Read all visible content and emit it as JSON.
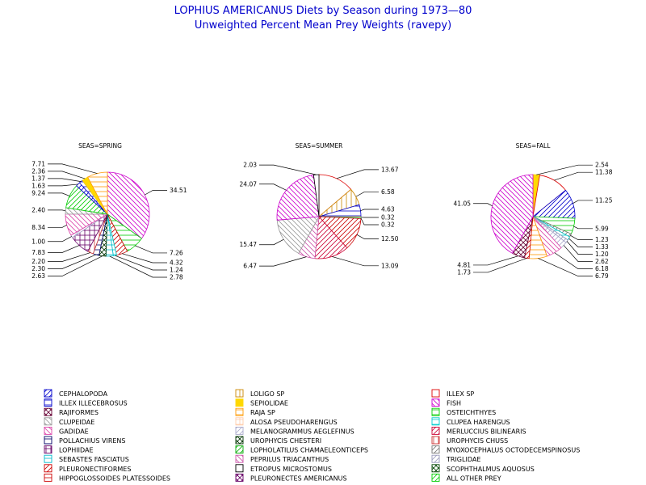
{
  "chart_data": {
    "type": "pie",
    "title": "LOPHIUS AMERICANUS Diets by Season during 1973—80",
    "subtitle": "Unweighted Percent Mean Prey Weights (ravepy)",
    "legend_placement": "bottom",
    "legend": [
      {
        "name": "CEPHALOPODA",
        "color": "#0000cc"
      },
      {
        "name": "LOLIGO SP",
        "color": "#cc8800"
      },
      {
        "name": "ILLEX SP",
        "color": "#dd0000"
      },
      {
        "name": "ILLEX ILLECEBROSUS",
        "color": "#0000cc"
      },
      {
        "name": "SEPIOLIDAE",
        "color": "#ffd800"
      },
      {
        "name": "FISH",
        "color": "#cc00cc"
      },
      {
        "name": "RAJIFORMES",
        "color": "#660033"
      },
      {
        "name": "RAJA SP",
        "color": "#ff9900"
      },
      {
        "name": "OSTEICHTHYES",
        "color": "#00cc00"
      },
      {
        "name": "CLUPEIDAE",
        "color": "#999999"
      },
      {
        "name": "ALOSA PSEUDOHARENGUS",
        "color": "#ffccaa"
      },
      {
        "name": "CLUPEA HARENGUS",
        "color": "#00cccc"
      },
      {
        "name": "GADIDAE",
        "color": "#dd44aa"
      },
      {
        "name": "MELANOGRAMMUS AEGLEFINUS",
        "color": "#aaaacc"
      },
      {
        "name": "MERLUCCIUS BILINEARIS",
        "color": "#cc0033"
      },
      {
        "name": "POLLACHIUS VIRENS",
        "color": "#000066"
      },
      {
        "name": "UROPHYCIS CHESTERI",
        "color": "#003300"
      },
      {
        "name": "UROPHYCIS CHUSS",
        "color": "#cc3333"
      },
      {
        "name": "LOPHIIDAE",
        "color": "#660066"
      },
      {
        "name": "LOPHOLATILUS CHAMAELEONTICEPS",
        "color": "#00aa00"
      },
      {
        "name": "MYOXOCEPHALUS OCTODECEMSPINOSUS",
        "color": "#777777"
      },
      {
        "name": "SEBASTES FASCIATUS",
        "color": "#00bbcc"
      },
      {
        "name": "PEPRILUS TRIACANTHUS",
        "color": "#cc55aa"
      },
      {
        "name": "TRIGLIDAE",
        "color": "#9999bb"
      },
      {
        "name": "PLEURONECTIFORMES",
        "color": "#cc0000"
      },
      {
        "name": "ETROPUS MICROSTOMUS",
        "color": "#000000"
      },
      {
        "name": "SCOPHTHALMUS AQUOSUS",
        "color": "#004400"
      },
      {
        "name": "HIPPOGLOSSOIDES PLATESSOIDES",
        "color": "#cc0000"
      },
      {
        "name": "PLEURONECTES AMERICANUS",
        "color": "#660066"
      },
      {
        "name": "ALL OTHER PREY",
        "color": "#00cc00"
      }
    ],
    "pies": [
      {
        "title": "SEAS=SPRING",
        "slices": [
          {
            "category": "FISH",
            "value": 34.51,
            "label": "34.51"
          },
          {
            "category": "OSTEICHTHYES",
            "value": 7.26,
            "label": "7.26"
          },
          {
            "category": "PLEURONECTIFORMES",
            "value": 4.32,
            "label": "4.32"
          },
          {
            "category": "CLUPEA HARENGUS",
            "value": 1.24,
            "label": "1.24"
          },
          {
            "category": "SEBASTES FASCIATUS",
            "value": 2.78,
            "label": "2.78"
          },
          {
            "category": "UROPHYCIS CHESTERI",
            "value": 2.63,
            "label": "2.63"
          },
          {
            "category": "POLLACHIUS VIRENS",
            "value": 2.3,
            "label": "2.30"
          },
          {
            "category": "UROPHYCIS CHUSS",
            "value": 2.2,
            "label": "2.20"
          },
          {
            "category": "LOPHIIDAE",
            "value": 7.83,
            "label": "7.83"
          },
          {
            "category": "MELANOGRAMMUS AEGLEFINUS",
            "value": 1.0,
            "label": "1.00"
          },
          {
            "category": "GADIDAE",
            "value": 8.34,
            "label": "8.34"
          },
          {
            "category": "CLUPEIDAE",
            "value": 2.4,
            "label": "2.40"
          },
          {
            "category": "ALL OTHER PREY",
            "value": 9.24,
            "label": "9.24"
          },
          {
            "category": "CEPHALOPODA",
            "value": 1.63,
            "label": "1.63"
          },
          {
            "category": "ILLEX ILLECEBROSUS",
            "value": 1.37,
            "label": "1.37"
          },
          {
            "category": "SEPIOLIDAE",
            "value": 2.36,
            "label": "2.36"
          },
          {
            "category": "RAJA SP",
            "value": 7.71,
            "label": "7.71"
          }
        ]
      },
      {
        "title": "SEAS=SUMMER",
        "slices": [
          {
            "category": "ILLEX SP",
            "value": 13.67,
            "label": "13.67"
          },
          {
            "category": "LOLIGO SP",
            "value": 6.58,
            "label": "6.58"
          },
          {
            "category": "ILLEX ILLECEBROSUS",
            "value": 4.63,
            "label": "4.63"
          },
          {
            "category": "SEPIOLIDAE",
            "value": 0.32,
            "label": "0.32"
          },
          {
            "category": "CLUPEA HARENGUS",
            "value": 0.32,
            "label": "0.32"
          },
          {
            "category": "PLEURONECTIFORMES",
            "value": 12.5,
            "label": "12.50"
          },
          {
            "category": "MERLUCCIUS BILINEARIS",
            "value": 13.09,
            "label": "13.09"
          },
          {
            "category": "PEPRILUS TRIACANTHUS",
            "value": 6.47,
            "label": "6.47"
          },
          {
            "category": "CLUPEIDAE",
            "value": 15.47,
            "label": "15.47"
          },
          {
            "category": "FISH",
            "value": 24.07,
            "label": "24.07"
          },
          {
            "category": "ETROPUS MICROSTOMUS",
            "value": 2.03,
            "label": "2.03"
          }
        ]
      },
      {
        "title": "SEAS=FALL",
        "slices": [
          {
            "category": "SEPIOLIDAE",
            "value": 2.54,
            "label": "2.54"
          },
          {
            "category": "ILLEX SP",
            "value": 11.38,
            "label": "11.38"
          },
          {
            "category": "CEPHALOPODA",
            "value": 11.25,
            "label": "11.25"
          },
          {
            "category": "OSTEICHTHYES",
            "value": 5.99,
            "label": "5.99"
          },
          {
            "category": "MYOXOCEPHALUS OCTODECEMSPINOSUS",
            "value": 1.23,
            "label": "1.23"
          },
          {
            "category": "CLUPEA HARENGUS",
            "value": 1.33,
            "label": "1.33"
          },
          {
            "category": "TRIGLIDAE",
            "value": 1.2,
            "label": "1.20"
          },
          {
            "category": "MELANOGRAMMUS AEGLEFINUS",
            "value": 2.62,
            "label": "2.62"
          },
          {
            "category": "GADIDAE",
            "value": 6.18,
            "label": "6.18"
          },
          {
            "category": "RAJA SP",
            "value": 6.79,
            "label": "6.79"
          },
          {
            "category": "PLEURONECTIFORMES",
            "value": 1.73,
            "label": "1.73"
          },
          {
            "category": "RAJIFORMES",
            "value": 4.81,
            "label": "4.81"
          },
          {
            "category": "FISH",
            "value": 41.05,
            "label": "41.05"
          }
        ]
      }
    ]
  }
}
